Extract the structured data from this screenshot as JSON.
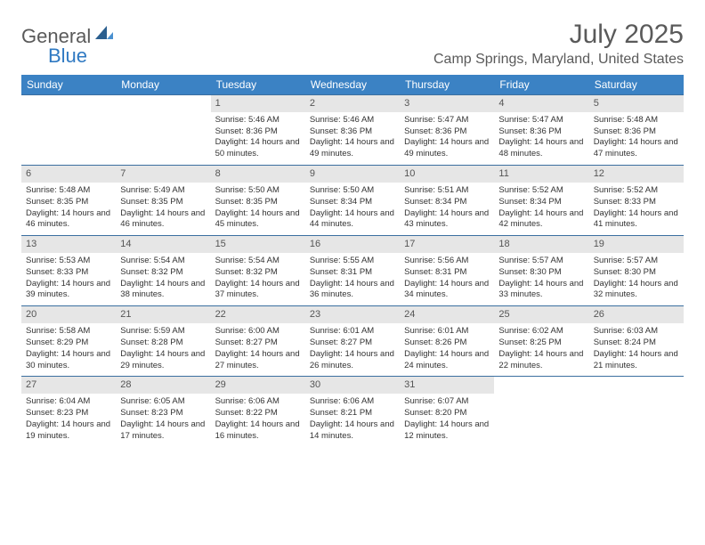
{
  "logo": {
    "text_general": "General",
    "text_blue": "Blue"
  },
  "header": {
    "month_title": "July 2025",
    "location": "Camp Springs, Maryland, United States"
  },
  "colors": {
    "weekday_bg": "#3b82c4",
    "row_border": "#3b6fa0",
    "daynum_bg": "#e6e6e6",
    "text_gray": "#5a5a5a",
    "brand_blue": "#2f79c2"
  },
  "weekdays": [
    "Sunday",
    "Monday",
    "Tuesday",
    "Wednesday",
    "Thursday",
    "Friday",
    "Saturday"
  ],
  "calendar": {
    "start_weekday_index": 2,
    "days": [
      {
        "n": 1,
        "sunrise": "5:46 AM",
        "sunset": "8:36 PM",
        "daylight": "14 hours and 50 minutes."
      },
      {
        "n": 2,
        "sunrise": "5:46 AM",
        "sunset": "8:36 PM",
        "daylight": "14 hours and 49 minutes."
      },
      {
        "n": 3,
        "sunrise": "5:47 AM",
        "sunset": "8:36 PM",
        "daylight": "14 hours and 49 minutes."
      },
      {
        "n": 4,
        "sunrise": "5:47 AM",
        "sunset": "8:36 PM",
        "daylight": "14 hours and 48 minutes."
      },
      {
        "n": 5,
        "sunrise": "5:48 AM",
        "sunset": "8:36 PM",
        "daylight": "14 hours and 47 minutes."
      },
      {
        "n": 6,
        "sunrise": "5:48 AM",
        "sunset": "8:35 PM",
        "daylight": "14 hours and 46 minutes."
      },
      {
        "n": 7,
        "sunrise": "5:49 AM",
        "sunset": "8:35 PM",
        "daylight": "14 hours and 46 minutes."
      },
      {
        "n": 8,
        "sunrise": "5:50 AM",
        "sunset": "8:35 PM",
        "daylight": "14 hours and 45 minutes."
      },
      {
        "n": 9,
        "sunrise": "5:50 AM",
        "sunset": "8:34 PM",
        "daylight": "14 hours and 44 minutes."
      },
      {
        "n": 10,
        "sunrise": "5:51 AM",
        "sunset": "8:34 PM",
        "daylight": "14 hours and 43 minutes."
      },
      {
        "n": 11,
        "sunrise": "5:52 AM",
        "sunset": "8:34 PM",
        "daylight": "14 hours and 42 minutes."
      },
      {
        "n": 12,
        "sunrise": "5:52 AM",
        "sunset": "8:33 PM",
        "daylight": "14 hours and 41 minutes."
      },
      {
        "n": 13,
        "sunrise": "5:53 AM",
        "sunset": "8:33 PM",
        "daylight": "14 hours and 39 minutes."
      },
      {
        "n": 14,
        "sunrise": "5:54 AM",
        "sunset": "8:32 PM",
        "daylight": "14 hours and 38 minutes."
      },
      {
        "n": 15,
        "sunrise": "5:54 AM",
        "sunset": "8:32 PM",
        "daylight": "14 hours and 37 minutes."
      },
      {
        "n": 16,
        "sunrise": "5:55 AM",
        "sunset": "8:31 PM",
        "daylight": "14 hours and 36 minutes."
      },
      {
        "n": 17,
        "sunrise": "5:56 AM",
        "sunset": "8:31 PM",
        "daylight": "14 hours and 34 minutes."
      },
      {
        "n": 18,
        "sunrise": "5:57 AM",
        "sunset": "8:30 PM",
        "daylight": "14 hours and 33 minutes."
      },
      {
        "n": 19,
        "sunrise": "5:57 AM",
        "sunset": "8:30 PM",
        "daylight": "14 hours and 32 minutes."
      },
      {
        "n": 20,
        "sunrise": "5:58 AM",
        "sunset": "8:29 PM",
        "daylight": "14 hours and 30 minutes."
      },
      {
        "n": 21,
        "sunrise": "5:59 AM",
        "sunset": "8:28 PM",
        "daylight": "14 hours and 29 minutes."
      },
      {
        "n": 22,
        "sunrise": "6:00 AM",
        "sunset": "8:27 PM",
        "daylight": "14 hours and 27 minutes."
      },
      {
        "n": 23,
        "sunrise": "6:01 AM",
        "sunset": "8:27 PM",
        "daylight": "14 hours and 26 minutes."
      },
      {
        "n": 24,
        "sunrise": "6:01 AM",
        "sunset": "8:26 PM",
        "daylight": "14 hours and 24 minutes."
      },
      {
        "n": 25,
        "sunrise": "6:02 AM",
        "sunset": "8:25 PM",
        "daylight": "14 hours and 22 minutes."
      },
      {
        "n": 26,
        "sunrise": "6:03 AM",
        "sunset": "8:24 PM",
        "daylight": "14 hours and 21 minutes."
      },
      {
        "n": 27,
        "sunrise": "6:04 AM",
        "sunset": "8:23 PM",
        "daylight": "14 hours and 19 minutes."
      },
      {
        "n": 28,
        "sunrise": "6:05 AM",
        "sunset": "8:23 PM",
        "daylight": "14 hours and 17 minutes."
      },
      {
        "n": 29,
        "sunrise": "6:06 AM",
        "sunset": "8:22 PM",
        "daylight": "14 hours and 16 minutes."
      },
      {
        "n": 30,
        "sunrise": "6:06 AM",
        "sunset": "8:21 PM",
        "daylight": "14 hours and 14 minutes."
      },
      {
        "n": 31,
        "sunrise": "6:07 AM",
        "sunset": "8:20 PM",
        "daylight": "14 hours and 12 minutes."
      }
    ]
  },
  "labels": {
    "sunrise_prefix": "Sunrise: ",
    "sunset_prefix": "Sunset: ",
    "daylight_prefix": "Daylight: "
  }
}
